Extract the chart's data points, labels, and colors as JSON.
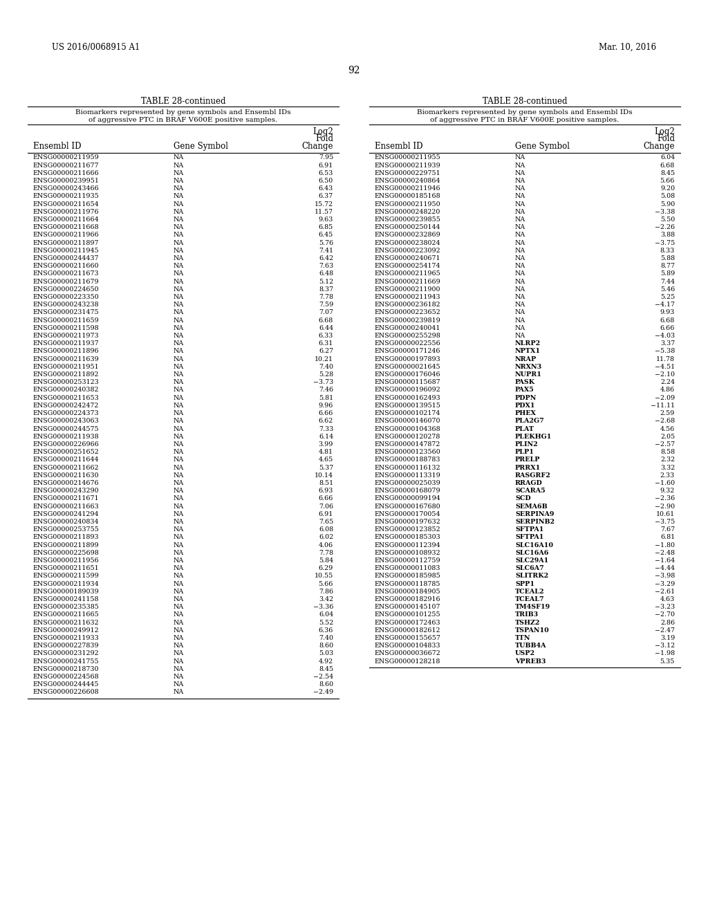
{
  "header_left": "US 2016/0068915 A1",
  "header_right": "Mar. 10, 2016",
  "page_number": "92",
  "table_title": "TABLE 28-continued",
  "table_subtitle_line1": "Biomarkers represented by gene symbols and Ensembl IDs",
  "table_subtitle_line2": "of aggressive PTC in BRAF V600E positive samples.",
  "col_header_1": "Ensembl ID",
  "col_header_2": "Gene Symbol",
  "col_header_3a": "Log2",
  "col_header_3b": "Fold",
  "col_header_3c": "Change",
  "left_data": [
    [
      "ENSG00000211959",
      "NA",
      "7.95"
    ],
    [
      "ENSG00000211677",
      "NA",
      "6.91"
    ],
    [
      "ENSG00000211666",
      "NA",
      "6.53"
    ],
    [
      "ENSG00000239951",
      "NA",
      "6.50"
    ],
    [
      "ENSG00000243466",
      "NA",
      "6.43"
    ],
    [
      "ENSG00000211935",
      "NA",
      "6.37"
    ],
    [
      "ENSG00000211654",
      "NA",
      "15.72"
    ],
    [
      "ENSG00000211976",
      "NA",
      "11.57"
    ],
    [
      "ENSG00000211664",
      "NA",
      "9.63"
    ],
    [
      "ENSG00000211668",
      "NA",
      "6.85"
    ],
    [
      "ENSG00000211966",
      "NA",
      "6.45"
    ],
    [
      "ENSG00000211897",
      "NA",
      "5.76"
    ],
    [
      "ENSG00000211945",
      "NA",
      "7.41"
    ],
    [
      "ENSG00000244437",
      "NA",
      "6.42"
    ],
    [
      "ENSG00000211660",
      "NA",
      "7.63"
    ],
    [
      "ENSG00000211673",
      "NA",
      "6.48"
    ],
    [
      "ENSG00000211679",
      "NA",
      "5.12"
    ],
    [
      "ENSG00000224650",
      "NA",
      "8.37"
    ],
    [
      "ENSG00000223350",
      "NA",
      "7.78"
    ],
    [
      "ENSG00000243238",
      "NA",
      "7.59"
    ],
    [
      "ENSG00000231475",
      "NA",
      "7.07"
    ],
    [
      "ENSG00000211659",
      "NA",
      "6.68"
    ],
    [
      "ENSG00000211598",
      "NA",
      "6.44"
    ],
    [
      "ENSG00000211973",
      "NA",
      "6.33"
    ],
    [
      "ENSG00000211937",
      "NA",
      "6.31"
    ],
    [
      "ENSG00000211896",
      "NA",
      "6.27"
    ],
    [
      "ENSG00000211639",
      "NA",
      "10.21"
    ],
    [
      "ENSG00000211951",
      "NA",
      "7.40"
    ],
    [
      "ENSG00000211892",
      "NA",
      "5.28"
    ],
    [
      "ENSG00000253123",
      "NA",
      "−3.73"
    ],
    [
      "ENSG00000240382",
      "NA",
      "7.46"
    ],
    [
      "ENSG00000211653",
      "NA",
      "5.81"
    ],
    [
      "ENSG00000242472",
      "NA",
      "9.96"
    ],
    [
      "ENSG00000224373",
      "NA",
      "6.66"
    ],
    [
      "ENSG00000243063",
      "NA",
      "6.62"
    ],
    [
      "ENSG00000244575",
      "NA",
      "7.33"
    ],
    [
      "ENSG00000211938",
      "NA",
      "6.14"
    ],
    [
      "ENSG00000226966",
      "NA",
      "3.99"
    ],
    [
      "ENSG00000251652",
      "NA",
      "4.81"
    ],
    [
      "ENSG00000211644",
      "NA",
      "4.65"
    ],
    [
      "ENSG00000211662",
      "NA",
      "5.37"
    ],
    [
      "ENSG00000211630",
      "NA",
      "10.14"
    ],
    [
      "ENSG00000214676",
      "NA",
      "8.51"
    ],
    [
      "ENSG00000243290",
      "NA",
      "6.93"
    ],
    [
      "ENSG00000211671",
      "NA",
      "6.66"
    ],
    [
      "ENSG00000211663",
      "NA",
      "7.06"
    ],
    [
      "ENSG00000241294",
      "NA",
      "6.91"
    ],
    [
      "ENSG00000240834",
      "NA",
      "7.65"
    ],
    [
      "ENSG00000253755",
      "NA",
      "6.08"
    ],
    [
      "ENSG00000211893",
      "NA",
      "6.02"
    ],
    [
      "ENSG00000211899",
      "NA",
      "4.06"
    ],
    [
      "ENSG00000225698",
      "NA",
      "7.78"
    ],
    [
      "ENSG00000211956",
      "NA",
      "5.84"
    ],
    [
      "ENSG00000211651",
      "NA",
      "6.29"
    ],
    [
      "ENSG00000211599",
      "NA",
      "10.55"
    ],
    [
      "ENSG00000211934",
      "NA",
      "5.66"
    ],
    [
      "ENSG00000189039",
      "NA",
      "7.86"
    ],
    [
      "ENSG00000241158",
      "NA",
      "3.42"
    ],
    [
      "ENSG00000235385",
      "NA",
      "−3.36"
    ],
    [
      "ENSG00000211665",
      "NA",
      "6.04"
    ],
    [
      "ENSG00000211632",
      "NA",
      "5.52"
    ],
    [
      "ENSG00000249912",
      "NA",
      "6.36"
    ],
    [
      "ENSG00000211933",
      "NA",
      "7.40"
    ],
    [
      "ENSG00000227839",
      "NA",
      "8.60"
    ],
    [
      "ENSG00000231292",
      "NA",
      "5.03"
    ],
    [
      "ENSG00000241755",
      "NA",
      "4.92"
    ],
    [
      "ENSG00000218730",
      "NA",
      "8.45"
    ],
    [
      "ENSG00000224568",
      "NA",
      "−2.54"
    ],
    [
      "ENSG00000244445",
      "NA",
      "8.60"
    ],
    [
      "ENSG00000226608",
      "NA",
      "−2.49"
    ]
  ],
  "right_data": [
    [
      "ENSG00000211955",
      "NA",
      "6.04"
    ],
    [
      "ENSG00000211939",
      "NA",
      "6.68"
    ],
    [
      "ENSG00000229751",
      "NA",
      "8.45"
    ],
    [
      "ENSG00000240864",
      "NA",
      "5.66"
    ],
    [
      "ENSG00000211946",
      "NA",
      "9.20"
    ],
    [
      "ENSG00000185168",
      "NA",
      "5.08"
    ],
    [
      "ENSG00000211950",
      "NA",
      "5.90"
    ],
    [
      "ENSG00000248220",
      "NA",
      "−3.38"
    ],
    [
      "ENSG00000239855",
      "NA",
      "5.50"
    ],
    [
      "ENSG00000250144",
      "NA",
      "−2.26"
    ],
    [
      "ENSG00000232869",
      "NA",
      "3.88"
    ],
    [
      "ENSG00000238024",
      "NA",
      "−3.75"
    ],
    [
      "ENSG00000223092",
      "NA",
      "8.33"
    ],
    [
      "ENSG00000240671",
      "NA",
      "5.88"
    ],
    [
      "ENSG00000254174",
      "NA",
      "8.77"
    ],
    [
      "ENSG00000211965",
      "NA",
      "5.89"
    ],
    [
      "ENSG00000211669",
      "NA",
      "7.44"
    ],
    [
      "ENSG00000211900",
      "NA",
      "5.46"
    ],
    [
      "ENSG00000211943",
      "NA",
      "5.25"
    ],
    [
      "ENSG00000236182",
      "NA",
      "−4.17"
    ],
    [
      "ENSG00000223652",
      "NA",
      "9.93"
    ],
    [
      "ENSG00000239819",
      "NA",
      "6.68"
    ],
    [
      "ENSG00000240041",
      "NA",
      "6.66"
    ],
    [
      "ENSG00000255298",
      "NA",
      "−4.03"
    ],
    [
      "ENSG00000022556",
      "NLRP2",
      "3.37"
    ],
    [
      "ENSG00000171246",
      "NPTX1",
      "−5.38"
    ],
    [
      "ENSG00000197893",
      "NRAP",
      "11.78"
    ],
    [
      "ENSG00000021645",
      "NRXN3",
      "−4.51"
    ],
    [
      "ENSG00000176046",
      "NUPR1",
      "−2.10"
    ],
    [
      "ENSG00000115687",
      "PASK",
      "2.24"
    ],
    [
      "ENSG00000196092",
      "PAX5",
      "4.86"
    ],
    [
      "ENSG00000162493",
      "PDPN",
      "−2.09"
    ],
    [
      "ENSG00000139515",
      "PDX1",
      "−11.11"
    ],
    [
      "ENSG00000102174",
      "PHEX",
      "2.59"
    ],
    [
      "ENSG00000146070",
      "PLA2G7",
      "−2.68"
    ],
    [
      "ENSG00000104368",
      "PLAT",
      "4.56"
    ],
    [
      "ENSG00000120278",
      "PLEKHG1",
      "2.05"
    ],
    [
      "ENSG00000147872",
      "PLIN2",
      "−2.57"
    ],
    [
      "ENSG00000123560",
      "PLP1",
      "8.58"
    ],
    [
      "ENSG00000188783",
      "PRELP",
      "2.32"
    ],
    [
      "ENSG00000116132",
      "PRRX1",
      "3.32"
    ],
    [
      "ENSG00000113319",
      "RASGRF2",
      "2.33"
    ],
    [
      "ENSG00000025039",
      "RRAGD",
      "−1.60"
    ],
    [
      "ENSG00000168079",
      "SCARA5",
      "9.32"
    ],
    [
      "ENSG00000099194",
      "SCD",
      "−2.36"
    ],
    [
      "ENSG00000167680",
      "SEMA6B",
      "−2.90"
    ],
    [
      "ENSG00000170054",
      "SERPINA9",
      "10.61"
    ],
    [
      "ENSG00000197632",
      "SERPINB2",
      "−3.75"
    ],
    [
      "ENSG00000123852",
      "SFTPA1",
      "7.67"
    ],
    [
      "ENSG00000185303",
      "SFTPA1",
      "6.81"
    ],
    [
      "ENSG00000112394",
      "SLC16A10",
      "−1.80"
    ],
    [
      "ENSG00000108932",
      "SLC16A6",
      "−2.48"
    ],
    [
      "ENSG00000112759",
      "SLC29A1",
      "−1.64"
    ],
    [
      "ENSG00000011083",
      "SLC6A7",
      "−4.44"
    ],
    [
      "ENSG00000185985",
      "SLITRK2",
      "−3.98"
    ],
    [
      "ENSG00000118785",
      "SPP1",
      "−3.29"
    ],
    [
      "ENSG00000184905",
      "TCEAL2",
      "−2.61"
    ],
    [
      "ENSG00000182916",
      "TCEAL7",
      "4.63"
    ],
    [
      "ENSG00000145107",
      "TM4SF19",
      "−3.23"
    ],
    [
      "ENSG00000101255",
      "TRIB3",
      "−2.70"
    ],
    [
      "ENSG00000172463",
      "TSHZ2",
      "2.86"
    ],
    [
      "ENSG00000182612",
      "TSPAN10",
      "−2.47"
    ],
    [
      "ENSG00000155657",
      "TTN",
      "3.19"
    ],
    [
      "ENSG00000104833",
      "TUBB4A",
      "−3.12"
    ],
    [
      "ENSG00000036672",
      "USP2",
      "−1.98"
    ],
    [
      "ENSG00000128218",
      "VPREB3",
      "5.35"
    ]
  ],
  "bg_color": "#ffffff",
  "text_color": "#000000",
  "line_color": "#000000",
  "font_size_header": 8.5,
  "font_size_title": 8.5,
  "font_size_subtitle": 7.5,
  "font_size_data": 6.8,
  "font_size_page": 10.0,
  "font_size_patent_header": 8.5
}
